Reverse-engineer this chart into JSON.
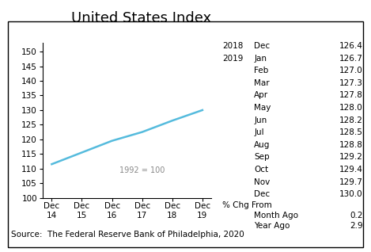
{
  "title": "United States Index",
  "source": "Source:  The Federal Reserve Bank of Philadelphia, 2020",
  "annotation": "1992 = 100",
  "line_color": "#55BBDD",
  "background_color": "#ffffff",
  "x_labels": [
    "Dec\n14",
    "Dec\n15",
    "Dec\n16",
    "Dec\n17",
    "Dec\n18",
    "Dec\n19"
  ],
  "x_values": [
    0,
    1,
    2,
    3,
    4,
    5
  ],
  "y_values": [
    111.5,
    115.5,
    119.5,
    122.5,
    126.4,
    130.0
  ],
  "ylim": [
    100,
    153
  ],
  "yticks": [
    100,
    105,
    110,
    115,
    120,
    125,
    130,
    135,
    140,
    145,
    150
  ],
  "sidebar_lines": [
    [
      "2018",
      "Dec",
      "126.4"
    ],
    [
      "2019",
      "Jan",
      "126.7"
    ],
    [
      "",
      "Feb",
      "127.0"
    ],
    [
      "",
      "Mar",
      "127.3"
    ],
    [
      "",
      "Apr",
      "127.8"
    ],
    [
      "",
      "May",
      "128.0"
    ],
    [
      "",
      "Jun",
      "128.2"
    ],
    [
      "",
      "Jul",
      "128.5"
    ],
    [
      "",
      "Aug",
      "128.8"
    ],
    [
      "",
      "Sep",
      "129.2"
    ],
    [
      "",
      "Oct",
      "129.4"
    ],
    [
      "",
      "Nov",
      "129.7"
    ],
    [
      "",
      "Dec",
      "130.0"
    ]
  ],
  "pct_chg_label": "% Chg From",
  "month_ago_label": "Month Ago",
  "month_ago_value": "0.2",
  "year_ago_label": "Year Ago",
  "year_ago_value": "2.9",
  "title_fontsize": 13,
  "tick_fontsize": 7.5,
  "sidebar_fontsize": 7.5,
  "source_fontsize": 7.5
}
